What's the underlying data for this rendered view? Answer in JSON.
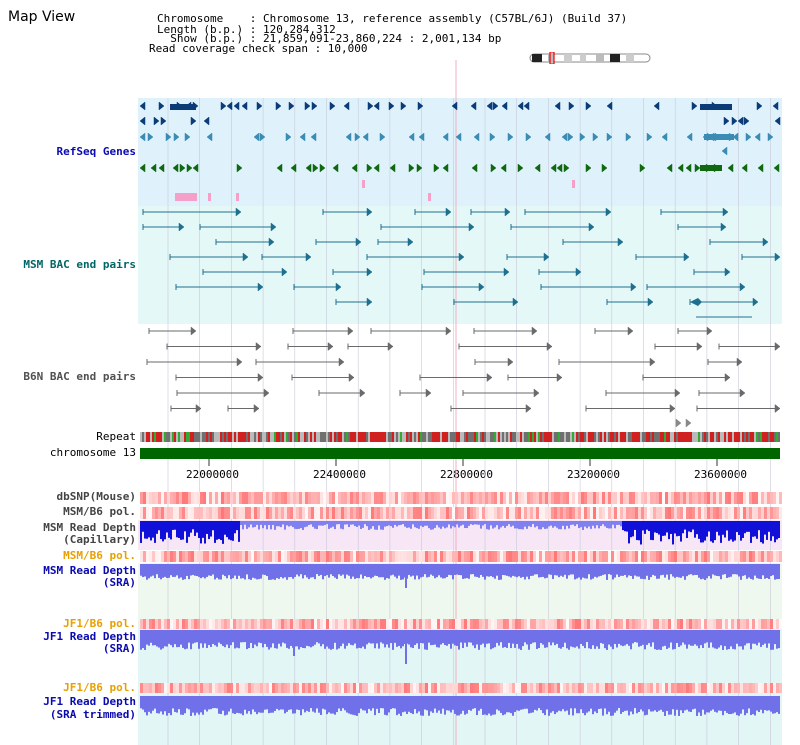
{
  "page_title": "Map View",
  "header": {
    "chromosome_line": "Chromosome    : Chromosome 13, reference assembly (C57BL/6J) (Build 37)",
    "length_line": "Length (b.p.) : 120,284,312",
    "show_line": "  Show (b.p.) : 21,859,091-23,860,224 : 2,001,134 bp",
    "span_line": "Read coverage check span : 10,000"
  },
  "tracks": {
    "refseq": {
      "label": "RefSeq Genes",
      "color": "#0a0ab0"
    },
    "msm_bac": {
      "label": "MSM BAC end pairs",
      "color": "#006666"
    },
    "b6n_bac": {
      "label": "B6N BAC end pairs",
      "color": "#505050"
    },
    "repeat": {
      "label": "Repeat"
    },
    "chrom": {
      "label": "chromosome 13"
    },
    "dbsnp": {
      "label": "dbSNP(Mouse)"
    },
    "msm_b6_pol_1": {
      "label": "MSM/B6 pol."
    },
    "msm_depth_cap": {
      "label": "MSM Read Depth",
      "label2": "(Capillary)"
    },
    "msm_b6_pol_2": {
      "label": "MSM/B6 pol.",
      "color": "#e8a000"
    },
    "msm_depth_sra": {
      "label": "MSM Read Depth",
      "label2": "(SRA)",
      "color": "#0a0ab0"
    },
    "jf1_b6_pol_1": {
      "label": "JF1/B6 pol.",
      "color": "#e8a000"
    },
    "jf1_depth_sra": {
      "label": "JF1 Read Depth",
      "label2": "(SRA)",
      "color": "#0a0ab0"
    },
    "jf1_b6_pol_2": {
      "label": "JF1/B6 pol.",
      "color": "#e8a000"
    },
    "jf1_depth_trim": {
      "label": "JF1 Read Depth",
      "label2": "(SRA trimmed)",
      "color": "#0a0ab0"
    }
  },
  "axis": {
    "ticks": [
      "22000000",
      "22400000",
      "22800000",
      "23200000",
      "23600000"
    ]
  },
  "colors": {
    "refseq_bg": "#dff2fc",
    "bac_bg": "#e4f8f8",
    "chrom_bar": "#006600",
    "depth_blue": "#3a3ae8",
    "snp_red": "#e83030"
  }
}
